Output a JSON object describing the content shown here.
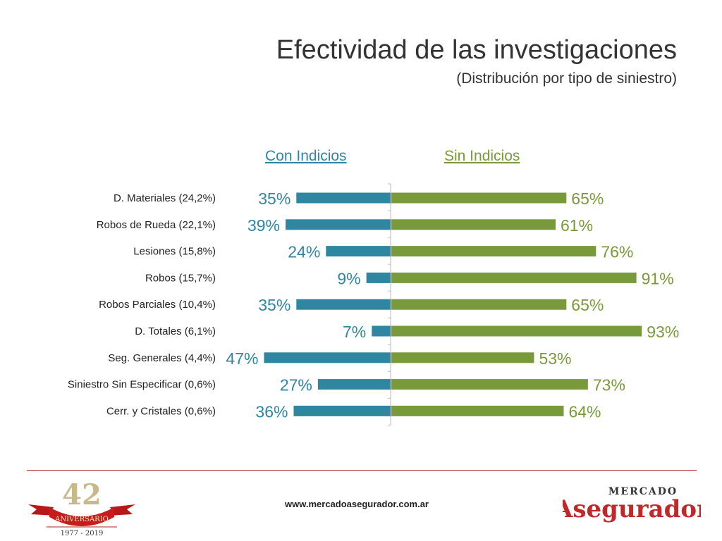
{
  "header": {
    "title": "Efectividad de las investigaciones",
    "subtitle": "(Distribución por tipo de siniestro)"
  },
  "legend": {
    "left": "Con Indicios",
    "right": "Sin Indicios"
  },
  "colors": {
    "con": "#2e86a0",
    "sin": "#789a3a",
    "footer_red": "#b02020"
  },
  "chart_data": {
    "type": "bar",
    "orientation": "horizontal-diverging",
    "categories": [
      "D. Materiales (24,2%)",
      "Robos de Rueda (22,1%)",
      "Lesiones (15,8%)",
      "Robos (15,7%)",
      "Robos Parciales (10,4%)",
      "D. Totales (6,1%)",
      "Seg. Generales (4,4%)",
      "Siniestro Sin Especificar (0,6%)",
      "Cerr. y Cristales (0,6%)"
    ],
    "series": [
      {
        "name": "Con Indicios",
        "values": [
          35,
          39,
          24,
          9,
          35,
          7,
          47,
          27,
          36
        ]
      },
      {
        "name": "Sin Indicios",
        "values": [
          65,
          61,
          76,
          91,
          65,
          93,
          53,
          73,
          64
        ]
      }
    ],
    "value_suffix": "%",
    "xlim": [
      0,
      100
    ],
    "grid": false,
    "legend_position": "top"
  },
  "footer": {
    "url": "www.mercadoasegurador.com.ar",
    "left_logo": {
      "number": "42",
      "ribbon": "ANIVERSARIO",
      "years": "1977 - 2019"
    },
    "right_logo": {
      "top": "MERCADO",
      "bottom": "Asegurador"
    }
  }
}
